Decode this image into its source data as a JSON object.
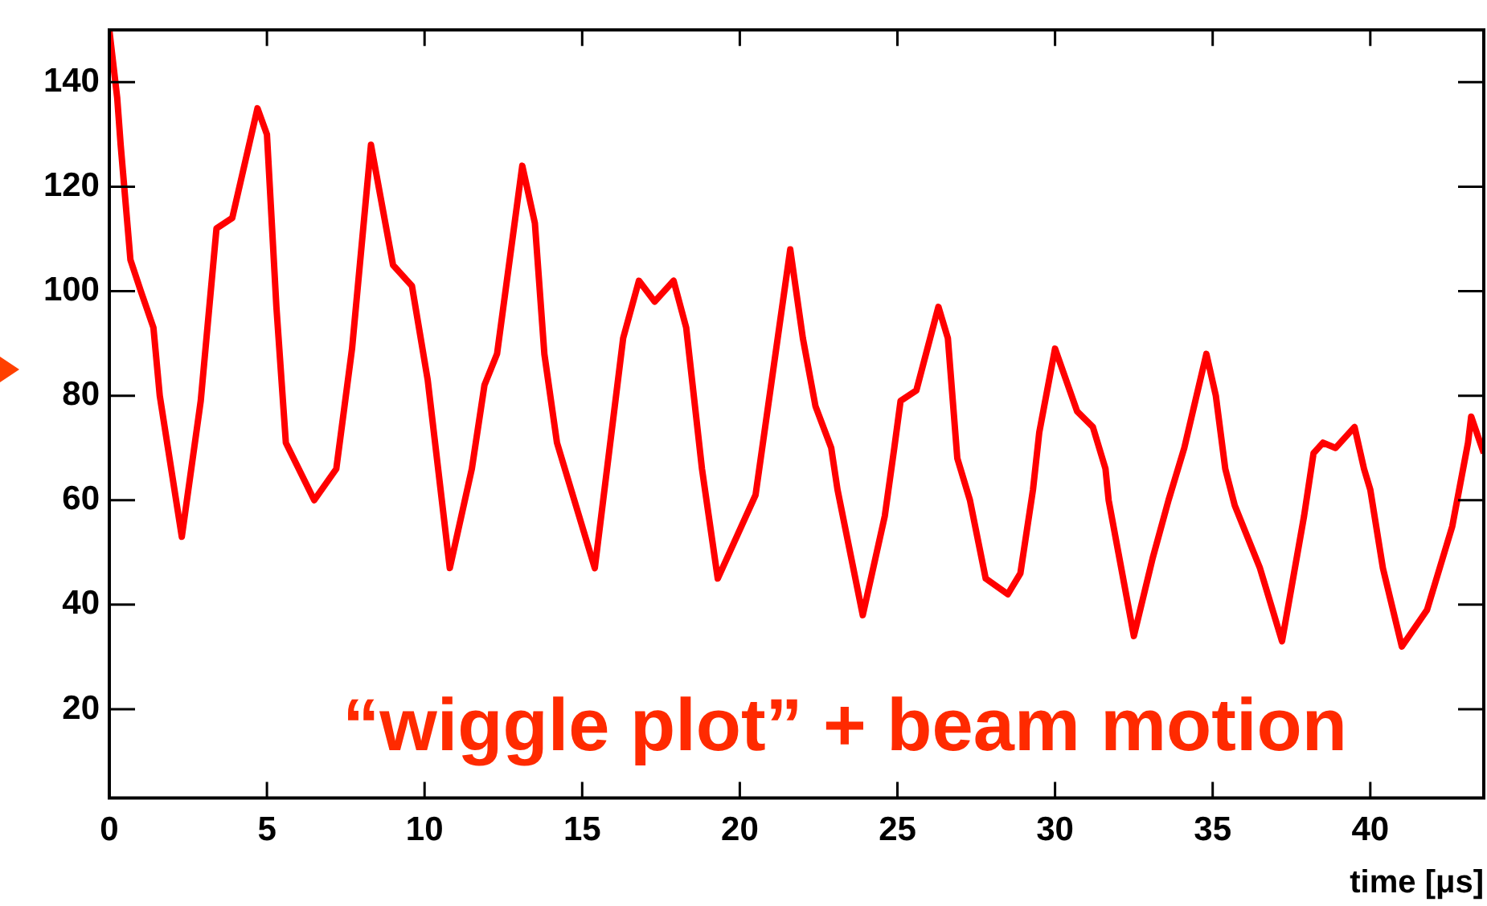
{
  "chart_data": {
    "type": "line",
    "xlabel": "time [μs]",
    "annotations": [
      "“wiggle plot” + beam motion"
    ],
    "xlim": [
      0,
      43.6
    ],
    "xticks": [
      0,
      5,
      10,
      15,
      20,
      25,
      30,
      35,
      40
    ],
    "ylim": [
      3,
      150
    ],
    "yticks": [
      20,
      40,
      60,
      80,
      100,
      120,
      140
    ],
    "grid": false,
    "legend": false,
    "marker": "none",
    "line_style": "solid",
    "series": [
      {
        "color": "#ff0000",
        "x": [
          0,
          0.25,
          0.36,
          0.67,
          1.0,
          1.4,
          1.6,
          2.3,
          2.9,
          3.4,
          3.9,
          4.7,
          5.0,
          5.3,
          5.6,
          6.5,
          7.2,
          7.7,
          8.3,
          9.0,
          9.6,
          10.1,
          10.8,
          11.5,
          11.9,
          12.3,
          13.1,
          13.5,
          13.8,
          14.2,
          15.4,
          16.3,
          16.8,
          17.3,
          17.9,
          18.3,
          18.8,
          19.3,
          20.5,
          21.6,
          22.0,
          22.4,
          22.9,
          23.1,
          23.9,
          24.6,
          24.9,
          25.1,
          25.6,
          26.3,
          26.6,
          26.9,
          27.3,
          27.8,
          28.5,
          28.9,
          29.3,
          29.5,
          30.0,
          30.7,
          31.2,
          31.6,
          31.7,
          32.5,
          33.1,
          33.6,
          34.1,
          34.8,
          35.1,
          35.4,
          35.7,
          36.5,
          37.2,
          37.9,
          38.2,
          38.5,
          38.9,
          39.5,
          39.8,
          40.0,
          40.4,
          41.0,
          41.8,
          42.6,
          43.1,
          43.2,
          43.6
        ],
        "values": [
          150,
          137,
          128,
          106,
          100,
          93,
          80,
          53,
          79,
          112,
          114,
          135,
          130,
          97,
          71,
          60,
          66,
          89,
          128,
          105,
          101,
          83,
          47,
          66,
          82,
          88,
          124,
          113,
          88,
          71,
          47,
          91,
          102,
          98,
          102,
          93,
          66,
          45,
          61,
          108,
          91,
          78,
          70,
          62,
          38,
          57,
          70,
          79,
          81,
          97,
          91,
          68,
          60,
          45,
          42,
          46,
          62,
          73,
          89,
          77,
          74,
          66,
          60,
          34,
          49,
          60,
          70,
          88,
          80,
          66,
          59,
          47,
          33,
          57,
          69,
          71,
          70,
          74,
          66,
          62,
          47,
          32,
          39,
          55,
          71,
          76,
          69
        ]
      }
    ]
  }
}
